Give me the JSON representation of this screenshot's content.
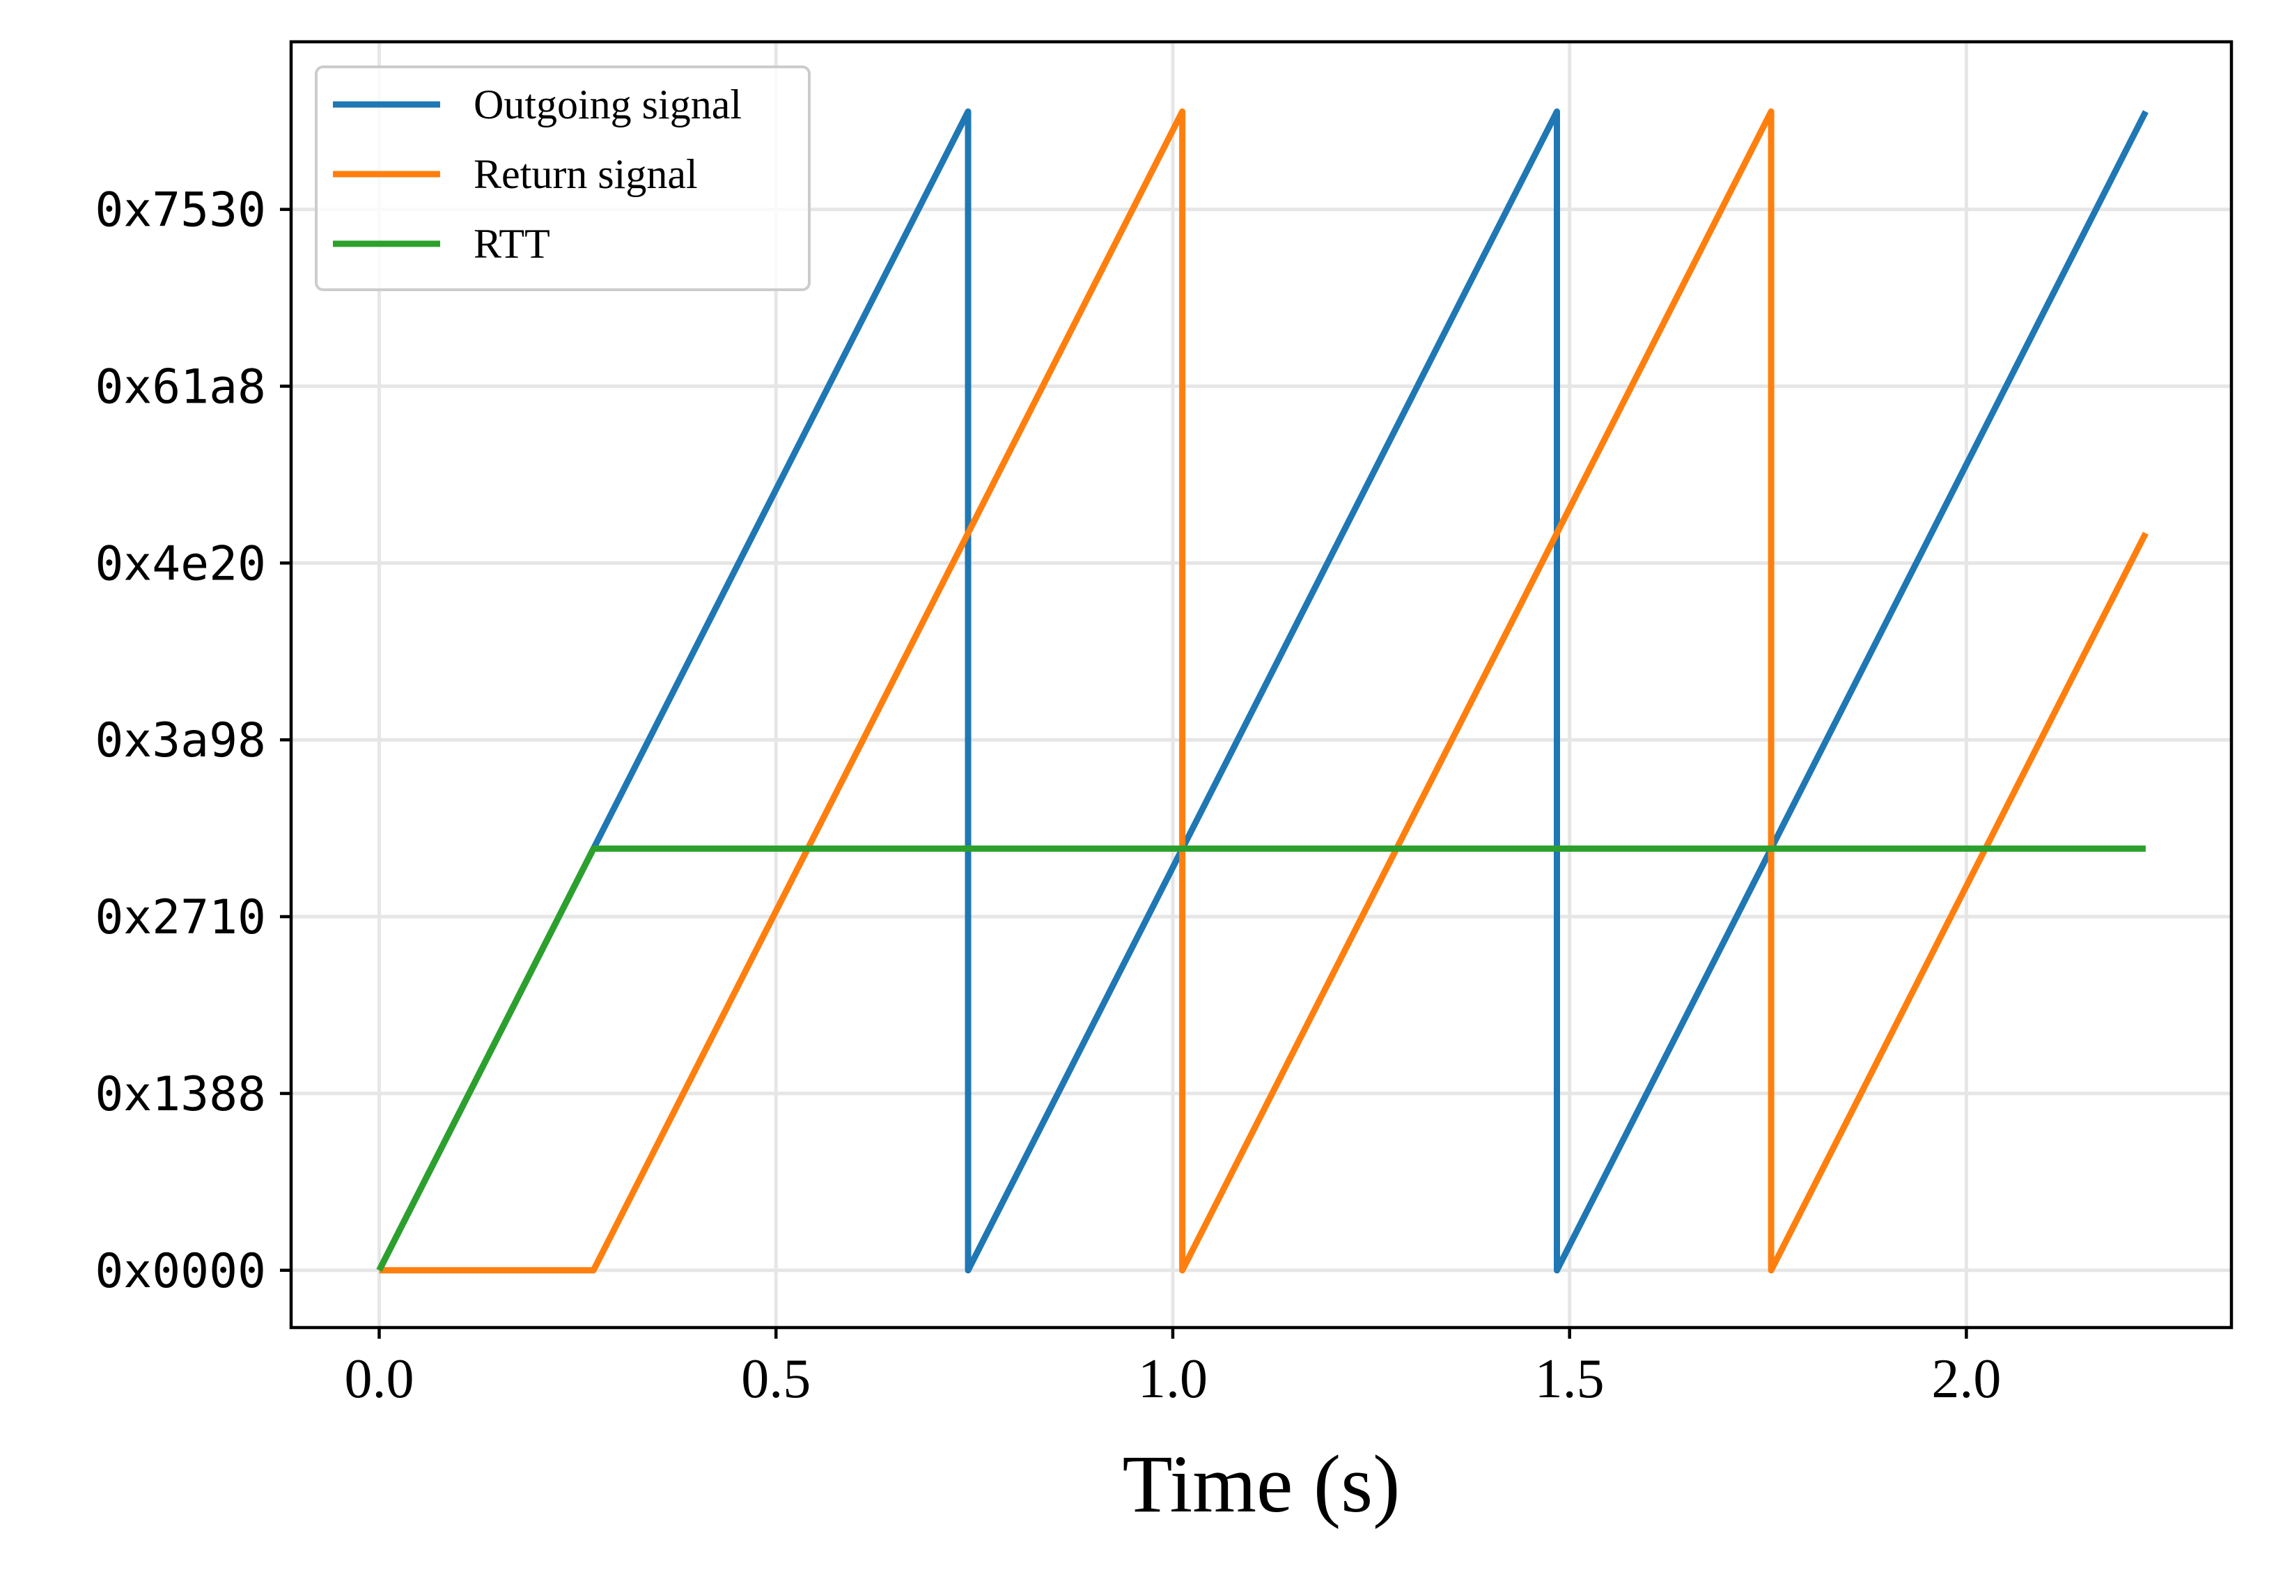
{
  "chart_data": {
    "type": "line",
    "xlabel": "Time (s)",
    "ylabel": "",
    "xlim": [
      -0.111,
      2.334
    ],
    "ylim": [
      -1620,
      34740
    ],
    "x_ticks": [
      0.0,
      0.5,
      1.0,
      1.5,
      2.0
    ],
    "x_tick_labels": [
      "0.0",
      "0.5",
      "1.0",
      "1.5",
      "2.0"
    ],
    "y_ticks": [
      0,
      5000,
      10000,
      15000,
      20000,
      25000,
      30000
    ],
    "y_tick_labels": [
      "0x0000",
      "0x1388",
      "0x2710",
      "0x3a98",
      "0x4e20",
      "0x61a8",
      "0x7530"
    ],
    "grid": true,
    "legend_position": "upper-left",
    "series": [
      {
        "name": "Outgoing signal",
        "color": "#1f77b4",
        "x": [
          0.0,
          0.742,
          0.742,
          1.484,
          1.484,
          2.226
        ],
        "y": [
          0,
          32767,
          0,
          32767,
          0,
          32767
        ]
      },
      {
        "name": "Return signal",
        "color": "#ff7f0e",
        "x": [
          0.0,
          0.27,
          1.012,
          1.012,
          1.754,
          1.754,
          2.226
        ],
        "y": [
          0,
          0,
          32767,
          0,
          32767,
          0,
          20844
        ]
      },
      {
        "name": "RTT",
        "color": "#2ca02c",
        "x": [
          0.0,
          0.27,
          2.226
        ],
        "y": [
          0,
          11923,
          11923
        ]
      }
    ]
  }
}
